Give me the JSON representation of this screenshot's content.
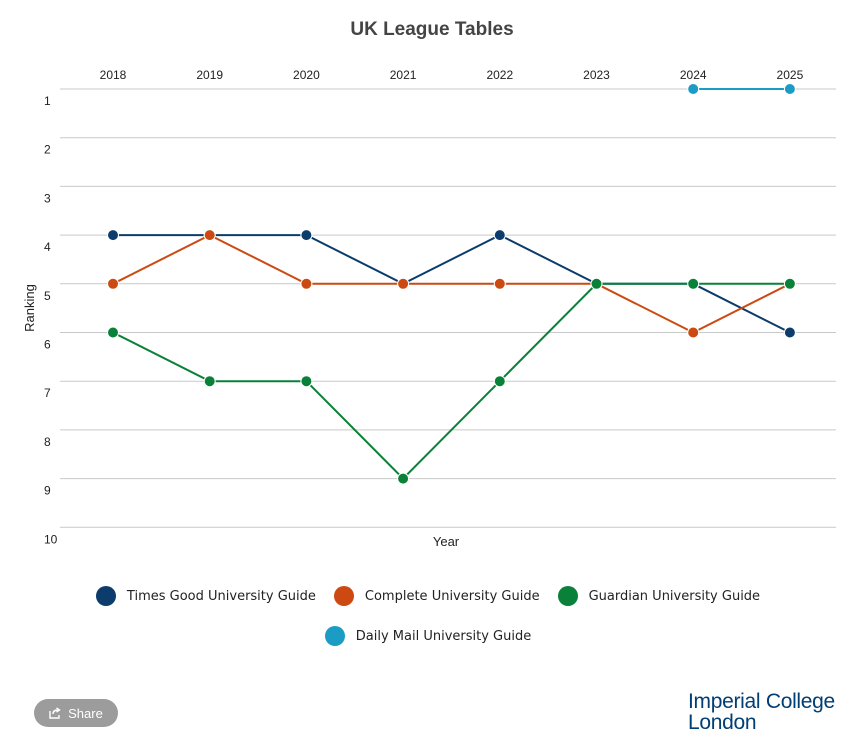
{
  "chart_data": {
    "type": "line",
    "title": "UK League Tables",
    "xlabel": "Year",
    "ylabel": "Ranking",
    "x": [
      "2018",
      "2019",
      "2020",
      "2021",
      "2022",
      "2023",
      "2024",
      "2025"
    ],
    "yticks": [
      "1",
      "2",
      "3",
      "4",
      "5",
      "6",
      "7",
      "8",
      "9",
      "10"
    ],
    "ylim": [
      1,
      10
    ],
    "y_inverted": true,
    "x_axis_position": "top",
    "grid": true,
    "legend_position": "bottom",
    "series": [
      {
        "name": "Times Good University Guide",
        "color": "#0b3c6b",
        "values": [
          4,
          4,
          4,
          5,
          4,
          5,
          5,
          6
        ]
      },
      {
        "name": "Complete University Guide",
        "color": "#cc4a12",
        "values": [
          5,
          4,
          5,
          5,
          5,
          5,
          6,
          5
        ]
      },
      {
        "name": "Guardian University Guide",
        "color": "#0a8138",
        "values": [
          6,
          7,
          7,
          9,
          7,
          5,
          5,
          5
        ]
      },
      {
        "name": "Daily Mail University Guide",
        "color": "#1a9cc4",
        "values": [
          null,
          null,
          null,
          null,
          null,
          null,
          1,
          1
        ]
      }
    ]
  },
  "share": {
    "label": "Share",
    "icon": "share-icon"
  },
  "logo": {
    "line1": "Imperial College",
    "line2": "London",
    "color": "#003e74"
  }
}
